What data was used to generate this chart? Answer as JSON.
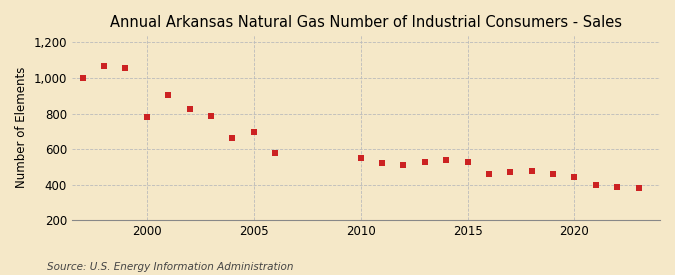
{
  "title": "Annual Arkansas Natural Gas Number of Industrial Consumers - Sales",
  "ylabel": "Number of Elements",
  "source": "Source: U.S. Energy Information Administration",
  "background_color": "#f5e8c8",
  "plot_background_color": "#f5e8c8",
  "marker_color": "#cc2222",
  "years": [
    1997,
    1998,
    1999,
    2000,
    2001,
    2002,
    2003,
    2004,
    2005,
    2006,
    2010,
    2011,
    2012,
    2013,
    2014,
    2015,
    2016,
    2017,
    2018,
    2019,
    2020,
    2021,
    2022,
    2023
  ],
  "values": [
    1000,
    1068,
    1058,
    780,
    905,
    825,
    785,
    665,
    695,
    578,
    550,
    520,
    508,
    525,
    540,
    525,
    462,
    472,
    478,
    462,
    440,
    400,
    388,
    383
  ],
  "xlim": [
    1996.5,
    2024
  ],
  "ylim": [
    200,
    1240
  ],
  "yticks": [
    200,
    400,
    600,
    800,
    1000,
    1200
  ],
  "xticks": [
    2000,
    2005,
    2010,
    2015,
    2020
  ],
  "grid_color": "#bbbbbb",
  "title_fontsize": 10.5,
  "label_fontsize": 8.5,
  "tick_fontsize": 8.5,
  "source_fontsize": 7.5
}
